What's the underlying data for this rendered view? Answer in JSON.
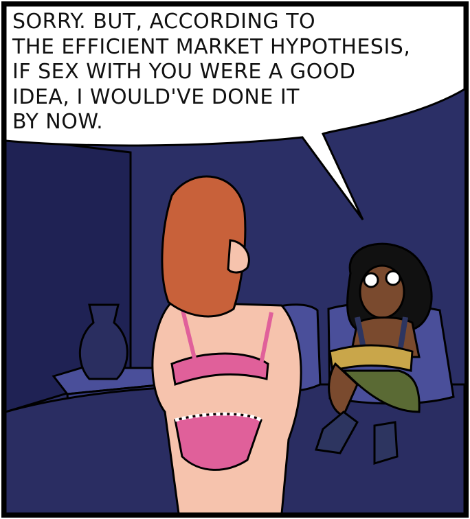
{
  "comic": {
    "speech_balloon": {
      "lines": [
        "SORRY.  BUT,  ACCORDING TO",
        "THE EFFICIENT MARKET HYPOTHESIS,",
        "IF SEX  WITH  YOU WERE  A GOOD",
        "IDEA,  I  WOULD'VE  DONE  IT",
        "BY NOW."
      ]
    },
    "colors": {
      "wall": "#2b2f66",
      "wall_dark": "#1f2254",
      "bed": "#2a2d62",
      "pillow": "#4a4f9a",
      "redhead_hair": "#c8613a",
      "skin_light": "#f6c3ad",
      "underwear_pink": "#e0609a",
      "skin_dark": "#7a4a2e",
      "shorts": "#5a6a34",
      "book": "#c9a64a",
      "outline": "#000000",
      "balloon": "#ffffff"
    },
    "characters": [
      "woman-redhead-lingerie",
      "woman-reading-book-glasses"
    ]
  }
}
